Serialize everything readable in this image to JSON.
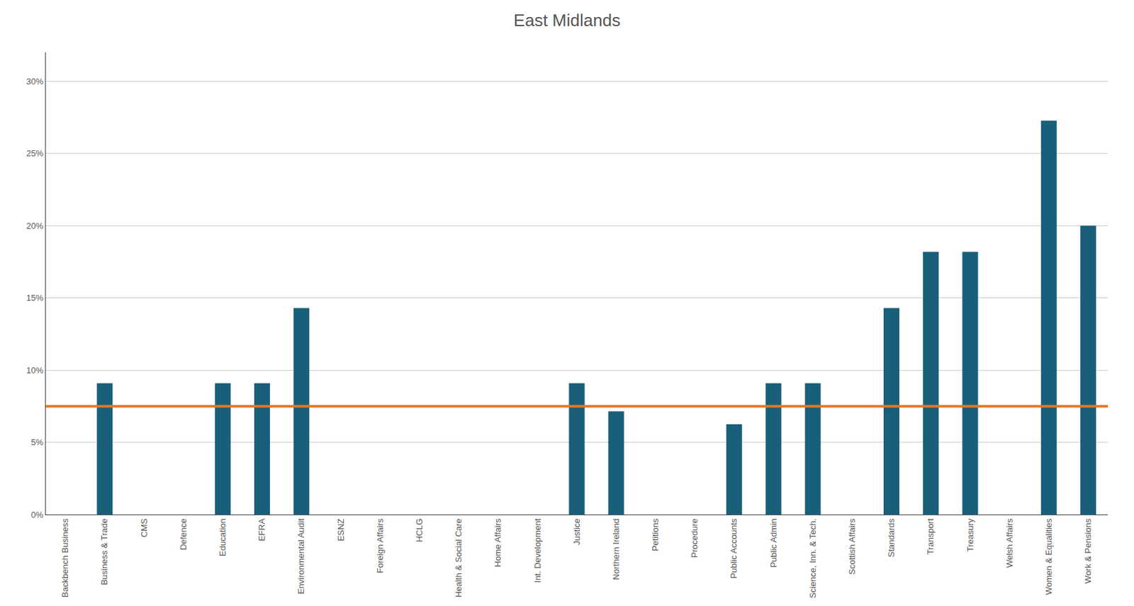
{
  "chart_data": {
    "type": "bar",
    "title": "East Midlands",
    "categories": [
      "Backbench Business",
      "Business & Trade",
      "CMS",
      "Defence",
      "Education",
      "EFRA",
      "Environmental Audit",
      "ESNZ",
      "Foreign Affairs",
      "HCLG",
      "Health & Social Care",
      "Home Affairs",
      "Int. Development",
      "Justice",
      "Northern Ireland",
      "Petitions",
      "Procedure",
      "Public Accounts",
      "Public Admin",
      "Science, Inn. & Tech.",
      "Scottish Affairs",
      "Standards",
      "Transport",
      "Treasury",
      "Welsh Affairs",
      "Women & Equalities",
      "Work & Pensions"
    ],
    "values": [
      0.0,
      9.09,
      0.0,
      0.0,
      9.09,
      9.09,
      14.29,
      0.0,
      0.0,
      0.0,
      0.0,
      0.0,
      0.0,
      9.09,
      7.14,
      0.0,
      0.0,
      6.25,
      9.09,
      9.09,
      0.0,
      14.29,
      18.18,
      18.18,
      0.0,
      27.27,
      20.0
    ],
    "color": "#1a5f7a",
    "reference_line": {
      "value": 7.49,
      "color": "#e07828"
    },
    "ylim": [
      0,
      32
    ],
    "yticks": [
      {
        "value": 0,
        "label": "0%"
      },
      {
        "value": 5,
        "label": "5%"
      },
      {
        "value": 10,
        "label": "10%"
      },
      {
        "value": 15,
        "label": "15%"
      },
      {
        "value": 20,
        "label": "20%"
      },
      {
        "value": 25,
        "label": "25%"
      },
      {
        "value": 30,
        "label": "30%"
      }
    ],
    "grid": true
  }
}
